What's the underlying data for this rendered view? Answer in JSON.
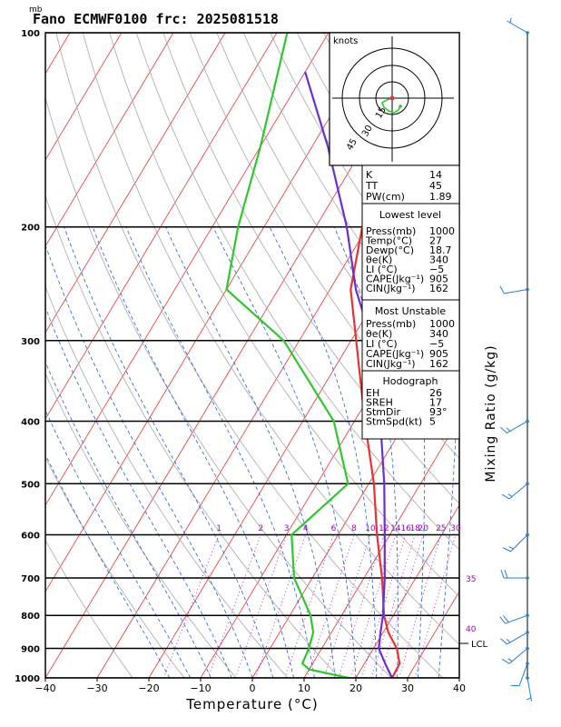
{
  "header": {
    "title": "Fano ECMWF0100 frc: 2025081518",
    "units": "mb"
  },
  "chart_data": {
    "type": "line",
    "title": "Fano ECMWF0100 frc: 2025081518",
    "xlabel": "Temperature (°C)",
    "ylabel": "",
    "y2label": "Mixing Ratio (g/kg)",
    "xlim": [
      -40,
      40
    ],
    "ylim": [
      1000,
      100
    ],
    "y_scale": "log",
    "x_ticks": [
      -40,
      -30,
      -20,
      -10,
      0,
      10,
      20,
      30,
      40
    ],
    "y_ticks": [
      100,
      200,
      300,
      400,
      500,
      600,
      700,
      800,
      900,
      1000
    ],
    "mixing_ratio_labels": [
      "1",
      "2",
      "3",
      "4",
      "6",
      "8",
      "10",
      "12",
      "14",
      "16",
      "18",
      "20",
      "25",
      "30"
    ],
    "dry_adiabat_labels": [
      "35",
      "40"
    ],
    "lcl_label": "LCL",
    "lcl_pressure": 900,
    "series": [
      {
        "name": "Temperature",
        "color": "#e83232",
        "points": [
          [
            1000,
            27
          ],
          [
            950,
            26.8
          ],
          [
            900,
            24.5
          ],
          [
            850,
            21
          ],
          [
            800,
            18.2
          ],
          [
            700,
            13.5
          ],
          [
            600,
            7.5
          ],
          [
            500,
            1
          ],
          [
            400,
            -8
          ],
          [
            300,
            -19
          ],
          [
            250,
            -26
          ],
          [
            200,
            -31
          ],
          [
            150,
            -37
          ],
          [
            100,
            -44
          ]
        ]
      },
      {
        "name": "Dewpoint",
        "color": "#2ec82e",
        "points": [
          [
            1000,
            18.7
          ],
          [
            970,
            10
          ],
          [
            950,
            8
          ],
          [
            900,
            7.5
          ],
          [
            850,
            6.5
          ],
          [
            800,
            4
          ],
          [
            700,
            -3.5
          ],
          [
            600,
            -9
          ],
          [
            500,
            -4
          ],
          [
            400,
            -14
          ],
          [
            300,
            -33
          ],
          [
            250,
            -50
          ],
          [
            200,
            -55
          ],
          [
            150,
            -60
          ],
          [
            100,
            -68
          ]
        ]
      },
      {
        "name": "Parcel",
        "color": "#6a2ed2",
        "points": [
          [
            1000,
            27
          ],
          [
            950,
            24
          ],
          [
            900,
            21
          ],
          [
            850,
            19.5
          ],
          [
            800,
            18
          ],
          [
            700,
            14
          ],
          [
            600,
            9
          ],
          [
            500,
            3
          ],
          [
            400,
            -5
          ],
          [
            300,
            -16
          ],
          [
            250,
            -25
          ],
          [
            200,
            -34
          ],
          [
            150,
            -47
          ],
          [
            115,
            -60
          ]
        ]
      }
    ]
  },
  "hodograph": {
    "units": "knots",
    "ring_labels": [
      "15",
      "30",
      "45"
    ],
    "trace_color": "#2ec82e",
    "marker_color": "#e83232"
  },
  "indices": {
    "rows": [
      {
        "label": "K",
        "value": "14"
      },
      {
        "label": "TT",
        "value": "45"
      },
      {
        "label": "PW(cm)",
        "value": "1.89"
      }
    ]
  },
  "lowest_level": {
    "header": "Lowest level",
    "rows": [
      {
        "label": "Press(mb)",
        "value": "1000"
      },
      {
        "label": "Temp(°C)",
        "value": "27"
      },
      {
        "label": "Dewp(°C)",
        "value": "18.7"
      },
      {
        "label": "θe(K)",
        "value": "340"
      },
      {
        "label": "LI (°C)",
        "value": "−5"
      },
      {
        "label": "CAPE(Jkg⁻¹)",
        "value": "905"
      },
      {
        "label": "CIN(Jkg⁻¹)",
        "value": "162"
      }
    ]
  },
  "most_unstable": {
    "header": "Most Unstable",
    "rows": [
      {
        "label": "Press(mb)",
        "value": "1000"
      },
      {
        "label": "θe(K)",
        "value": "340"
      },
      {
        "label": "LI (°C)",
        "value": "−5"
      },
      {
        "label": "CAPE(Jkg⁻¹)",
        "value": "905"
      },
      {
        "label": "CIN(Jkg⁻¹)",
        "value": "162"
      }
    ]
  },
  "hodograph_table": {
    "header": "Hodograph",
    "rows": [
      {
        "label": "EH",
        "value": "26"
      },
      {
        "label": "SREH",
        "value": "17"
      },
      {
        "label": "StmDir",
        "value": "93°"
      },
      {
        "label": "StmSpd(kt)",
        "value": "5"
      }
    ]
  },
  "wind_barbs": {
    "color": "#1f7fd6",
    "levels": [
      {
        "p": 100,
        "dir": 300,
        "spd": 5
      },
      {
        "p": 250,
        "dir": 260,
        "spd": 10
      },
      {
        "p": 400,
        "dir": 240,
        "spd": 15
      },
      {
        "p": 500,
        "dir": 230,
        "spd": 15
      },
      {
        "p": 600,
        "dir": 225,
        "spd": 15
      },
      {
        "p": 700,
        "dir": 270,
        "spd": 20
      },
      {
        "p": 800,
        "dir": 250,
        "spd": 20
      },
      {
        "p": 850,
        "dir": 240,
        "spd": 15
      },
      {
        "p": 900,
        "dir": 230,
        "spd": 15
      },
      {
        "p": 950,
        "dir": 200,
        "spd": 10
      },
      {
        "p": 1000,
        "dir": 170,
        "spd": 5
      }
    ]
  }
}
